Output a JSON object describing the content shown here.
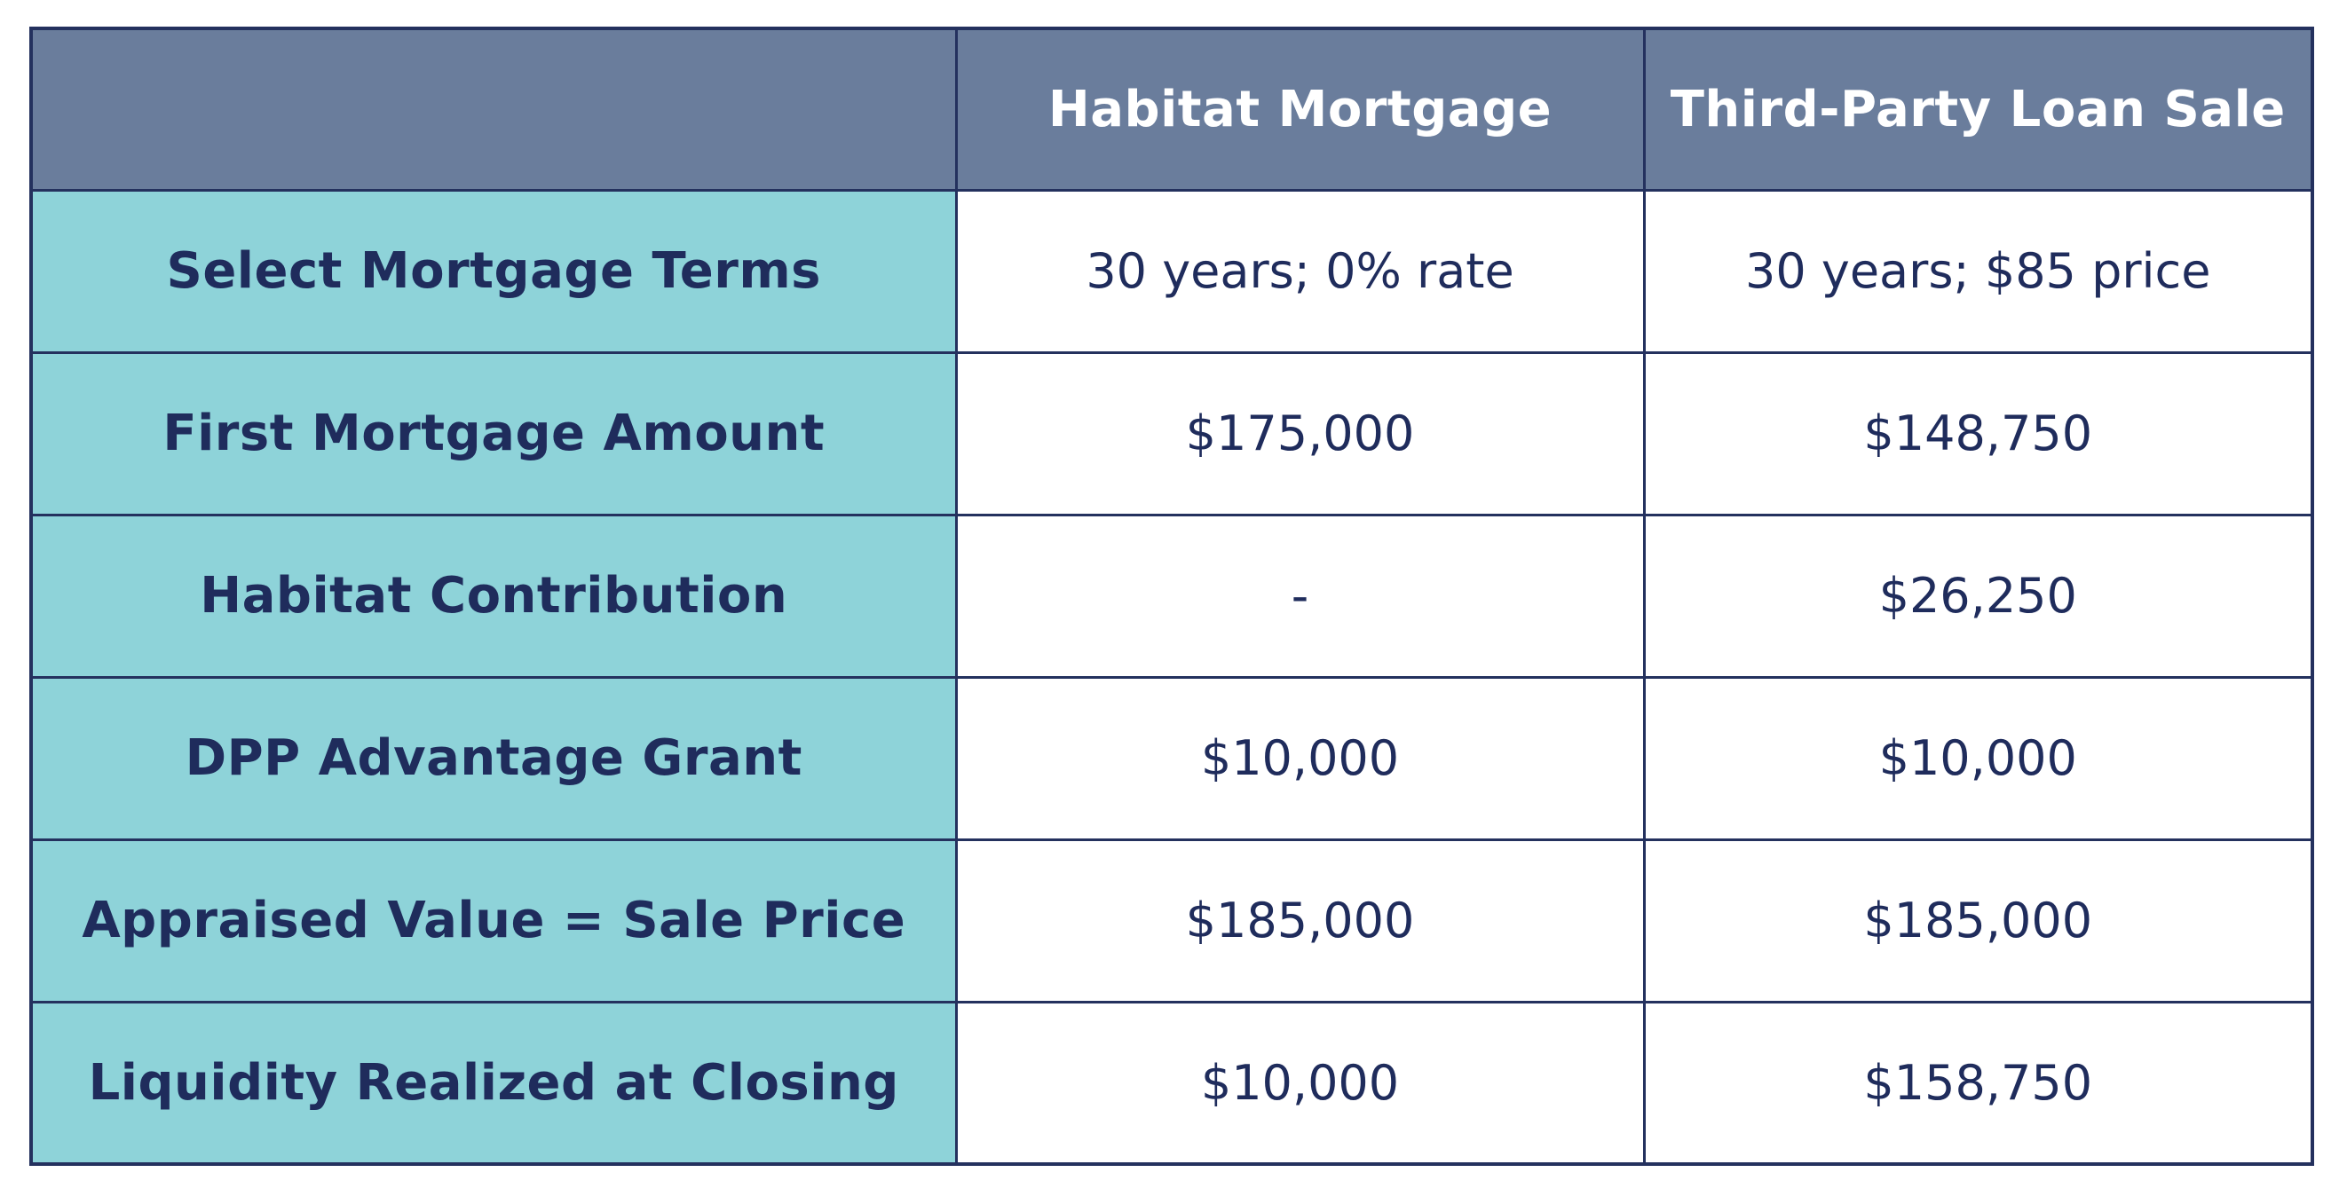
{
  "chart_data": {
    "type": "table",
    "columns": [
      "",
      "Habitat Mortgage",
      "Third-Party Loan Sale"
    ],
    "rows": [
      [
        "Select Mortgage Terms",
        "30 years; 0% rate",
        "30 years; $85 price"
      ],
      [
        "First Mortgage Amount",
        "$175,000",
        "$148,750"
      ],
      [
        "Habitat Contribution",
        "-",
        "$26,250"
      ],
      [
        "DPP Advantage Grant",
        "$10,000",
        "$10,000"
      ],
      [
        "Appraised Value = Sale Price",
        "$185,000",
        "$185,000"
      ],
      [
        "Liquidity Realized at Closing",
        "$10,000",
        "$158,750"
      ]
    ],
    "colors": {
      "header_background": "#6a7d9c",
      "label_background": "#8ed3d9",
      "border": "#24315e",
      "text": "#1f2c5c",
      "header_text": "#ffffff"
    }
  }
}
